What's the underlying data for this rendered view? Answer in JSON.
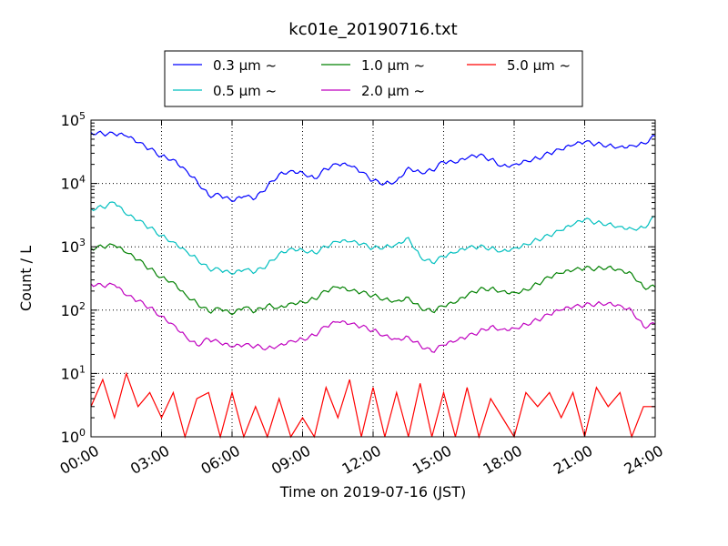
{
  "chart_data": {
    "type": "line",
    "title": "kc01e_20190716.txt",
    "xlabel": "Time on 2019-07-16 (JST)",
    "ylabel": "Count / L",
    "yscale": "log",
    "ylim": [
      1,
      100000
    ],
    "xlim": [
      "00:00",
      "24:00"
    ],
    "grid": true,
    "legend_position": "top-center",
    "x_ticks": [
      "00:00",
      "03:00",
      "06:00",
      "09:00",
      "12:00",
      "15:00",
      "18:00",
      "21:00",
      "24:00"
    ],
    "y_ticks": [
      {
        "base": "10",
        "exp": "0"
      },
      {
        "base": "10",
        "exp": "1"
      },
      {
        "base": "10",
        "exp": "2"
      },
      {
        "base": "10",
        "exp": "3"
      },
      {
        "base": "10",
        "exp": "4"
      },
      {
        "base": "10",
        "exp": "5"
      }
    ],
    "series": [
      {
        "name": "0.3 μm ~",
        "color": "#0000ff",
        "x": [
          0,
          0.5,
          1,
          1.5,
          2,
          2.5,
          3,
          3.5,
          4,
          4.5,
          5,
          5.5,
          6,
          6.5,
          7,
          7.5,
          8,
          8.5,
          9,
          9.5,
          10,
          10.5,
          11,
          11.5,
          12,
          12.5,
          13,
          13.5,
          14,
          14.5,
          15,
          15.5,
          16,
          16.5,
          17,
          17.5,
          18,
          18.5,
          19,
          19.5,
          20,
          20.5,
          21,
          21.5,
          22,
          22.5,
          23,
          23.5,
          24
        ],
        "values": [
          64000,
          61000,
          60000,
          56000,
          44000,
          35000,
          27000,
          24000,
          17000,
          11000,
          6500,
          6500,
          5200,
          6200,
          5800,
          9000,
          14000,
          16000,
          15000,
          12000,
          17000,
          20000,
          19000,
          15000,
          11000,
          10000,
          11000,
          18000,
          15000,
          16000,
          22000,
          21000,
          25000,
          28000,
          24000,
          19000,
          20000,
          23000,
          25000,
          30000,
          34000,
          40000,
          45000,
          42000,
          40000,
          38000,
          40000,
          43000,
          56000
        ]
      },
      {
        "name": "0.5 μm ~",
        "color": "#00bfbf",
        "x": [
          0,
          0.5,
          1,
          1.5,
          2,
          2.5,
          3,
          3.5,
          4,
          4.5,
          5,
          5.5,
          6,
          6.5,
          7,
          7.5,
          8,
          8.5,
          9,
          9.5,
          10,
          10.5,
          11,
          11.5,
          12,
          12.5,
          13,
          13.5,
          14,
          14.5,
          15,
          15.5,
          16,
          16.5,
          17,
          17.5,
          18,
          18.5,
          19,
          19.5,
          20,
          20.5,
          21,
          21.5,
          22,
          22.5,
          23,
          23.5,
          24
        ],
        "values": [
          4000,
          4200,
          5000,
          3200,
          2600,
          2000,
          1500,
          1200,
          900,
          650,
          450,
          430,
          370,
          430,
          400,
          520,
          780,
          950,
          900,
          800,
          1000,
          1200,
          1200,
          1100,
          950,
          1000,
          1100,
          1400,
          700,
          560,
          700,
          800,
          950,
          1000,
          950,
          860,
          960,
          1100,
          1300,
          1500,
          1800,
          2200,
          2700,
          2400,
          2300,
          2100,
          1950,
          2000,
          3000
        ]
      },
      {
        "name": "1.0 μm ~",
        "color": "#008000",
        "x": [
          0,
          0.5,
          1,
          1.5,
          2,
          2.5,
          3,
          3.5,
          4,
          4.5,
          5,
          5.5,
          6,
          6.5,
          7,
          7.5,
          8,
          8.5,
          9,
          9.5,
          10,
          10.5,
          11,
          11.5,
          12,
          12.5,
          13,
          13.5,
          14,
          14.5,
          15,
          15.5,
          16,
          16.5,
          17,
          17.5,
          18,
          18.5,
          19,
          19.5,
          20,
          20.5,
          21,
          21.5,
          22,
          22.5,
          23,
          23.5,
          24
        ],
        "values": [
          950,
          1000,
          1050,
          800,
          620,
          450,
          330,
          280,
          180,
          130,
          95,
          105,
          85,
          110,
          95,
          120,
          110,
          130,
          135,
          150,
          200,
          230,
          200,
          190,
          170,
          150,
          140,
          160,
          110,
          95,
          115,
          130,
          170,
          210,
          220,
          200,
          190,
          210,
          260,
          330,
          380,
          420,
          460,
          450,
          480,
          440,
          380,
          230,
          230
        ]
      },
      {
        "name": "2.0 μm ~",
        "color": "#bf00bf",
        "x": [
          0,
          0.5,
          1,
          1.5,
          2,
          2.5,
          3,
          3.5,
          4,
          4.5,
          5,
          5.5,
          6,
          6.5,
          7,
          7.5,
          8,
          8.5,
          9,
          9.5,
          10,
          10.5,
          11,
          11.5,
          12,
          12.5,
          13,
          13.5,
          14,
          14.5,
          15,
          15.5,
          16,
          16.5,
          17,
          17.5,
          18,
          18.5,
          19,
          19.5,
          20,
          20.5,
          21,
          21.5,
          22,
          22.5,
          23,
          23.5,
          24
        ],
        "values": [
          260,
          240,
          250,
          170,
          140,
          110,
          80,
          60,
          40,
          28,
          35,
          30,
          26,
          28,
          27,
          25,
          28,
          33,
          35,
          40,
          55,
          65,
          60,
          55,
          48,
          40,
          35,
          38,
          28,
          22,
          28,
          32,
          38,
          45,
          55,
          50,
          52,
          60,
          70,
          85,
          100,
          110,
          120,
          125,
          130,
          120,
          100,
          55,
          60
        ]
      },
      {
        "name": "5.0 μm ~",
        "color": "#ff0000",
        "x": [
          0,
          0.5,
          1,
          1.5,
          2,
          2.5,
          3,
          3.5,
          4,
          4.5,
          5,
          5.5,
          6,
          6.5,
          7,
          7.5,
          8,
          8.5,
          9,
          9.5,
          10,
          10.5,
          11,
          11.5,
          12,
          12.5,
          13,
          13.5,
          14,
          14.5,
          15,
          15.5,
          16,
          16.5,
          17,
          17.5,
          18,
          18.5,
          19,
          19.5,
          20,
          20.5,
          21,
          21.5,
          22,
          22.5,
          23,
          23.5,
          24
        ],
        "values": [
          3,
          8,
          2,
          10,
          3,
          5,
          2,
          5,
          1,
          4,
          5,
          1,
          5,
          1,
          3,
          1,
          4,
          1,
          2,
          1,
          6,
          2,
          8,
          1,
          6,
          1,
          5,
          1,
          7,
          1,
          5,
          1,
          6,
          1,
          4,
          2,
          1,
          5,
          3,
          5,
          2,
          5,
          1,
          6,
          3,
          5,
          1,
          3,
          3
        ]
      }
    ]
  }
}
